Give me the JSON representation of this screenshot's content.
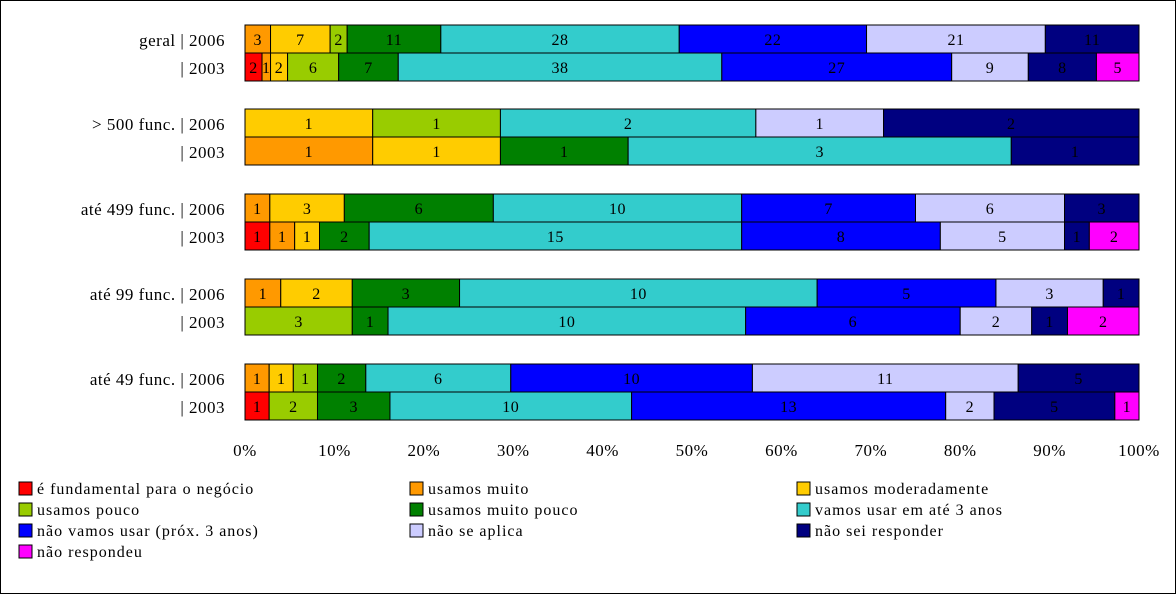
{
  "chart_data": {
    "type": "bar",
    "orientation": "horizontal",
    "stacked": "percent",
    "title": "",
    "xlabel": "",
    "ylabel": "",
    "xlim": [
      0,
      100
    ],
    "x_ticks": [
      "0%",
      "10%",
      "20%",
      "30%",
      "40%",
      "50%",
      "60%",
      "70%",
      "80%",
      "90%",
      "100%"
    ],
    "grid": false,
    "legend_position": "bottom",
    "series": [
      {
        "name": "é fundamental para o negócio",
        "color": "#ff0000"
      },
      {
        "name": "usamos muito",
        "color": "#ff9900"
      },
      {
        "name": "usamos moderadamente",
        "color": "#ffcc00"
      },
      {
        "name": "usamos pouco",
        "color": "#99cc00"
      },
      {
        "name": "usamos muito pouco",
        "color": "#008000"
      },
      {
        "name": "vamos usar em até 3 anos",
        "color": "#33cccc"
      },
      {
        "name": "não vamos usar (próx. 3 anos)",
        "color": "#0000ff"
      },
      {
        "name": "não se aplica",
        "color": "#ccccff"
      },
      {
        "name": "não sei responder",
        "color": "#000080"
      },
      {
        "name": "não respondeu",
        "color": "#ff00ff"
      }
    ],
    "groups": [
      {
        "rows": [
          {
            "label": "geral | 2006",
            "values": [
              0,
              3,
              7,
              2,
              11,
              28,
              22,
              21,
              11,
              0
            ]
          },
          {
            "label": "| 2003",
            "values": [
              2,
              1,
              2,
              6,
              7,
              38,
              27,
              9,
              8,
              5
            ]
          }
        ]
      },
      {
        "rows": [
          {
            "label": "> 500 func. | 2006",
            "values": [
              0,
              0,
              1,
              1,
              0,
              2,
              0,
              1,
              2,
              0
            ]
          },
          {
            "label": "| 2003",
            "values": [
              0,
              1,
              1,
              0,
              1,
              3,
              0,
              0,
              1,
              0
            ]
          }
        ]
      },
      {
        "rows": [
          {
            "label": "até 499 func. | 2006",
            "values": [
              0,
              1,
              3,
              0,
              6,
              10,
              7,
              6,
              3,
              0
            ]
          },
          {
            "label": "| 2003",
            "values": [
              1,
              1,
              1,
              0,
              2,
              15,
              8,
              5,
              1,
              2
            ]
          }
        ]
      },
      {
        "rows": [
          {
            "label": "até 99 func. | 2006",
            "values": [
              0,
              1,
              2,
              0,
              3,
              10,
              5,
              3,
              1,
              0
            ]
          },
          {
            "label": "| 2003",
            "values": [
              0,
              0,
              0,
              3,
              1,
              10,
              6,
              2,
              1,
              2
            ]
          }
        ]
      },
      {
        "rows": [
          {
            "label": "até 49 func. | 2006",
            "values": [
              0,
              1,
              1,
              1,
              2,
              6,
              10,
              11,
              5,
              0
            ]
          },
          {
            "label": "| 2003",
            "values": [
              1,
              0,
              0,
              2,
              3,
              10,
              13,
              2,
              5,
              1
            ]
          }
        ]
      }
    ]
  }
}
